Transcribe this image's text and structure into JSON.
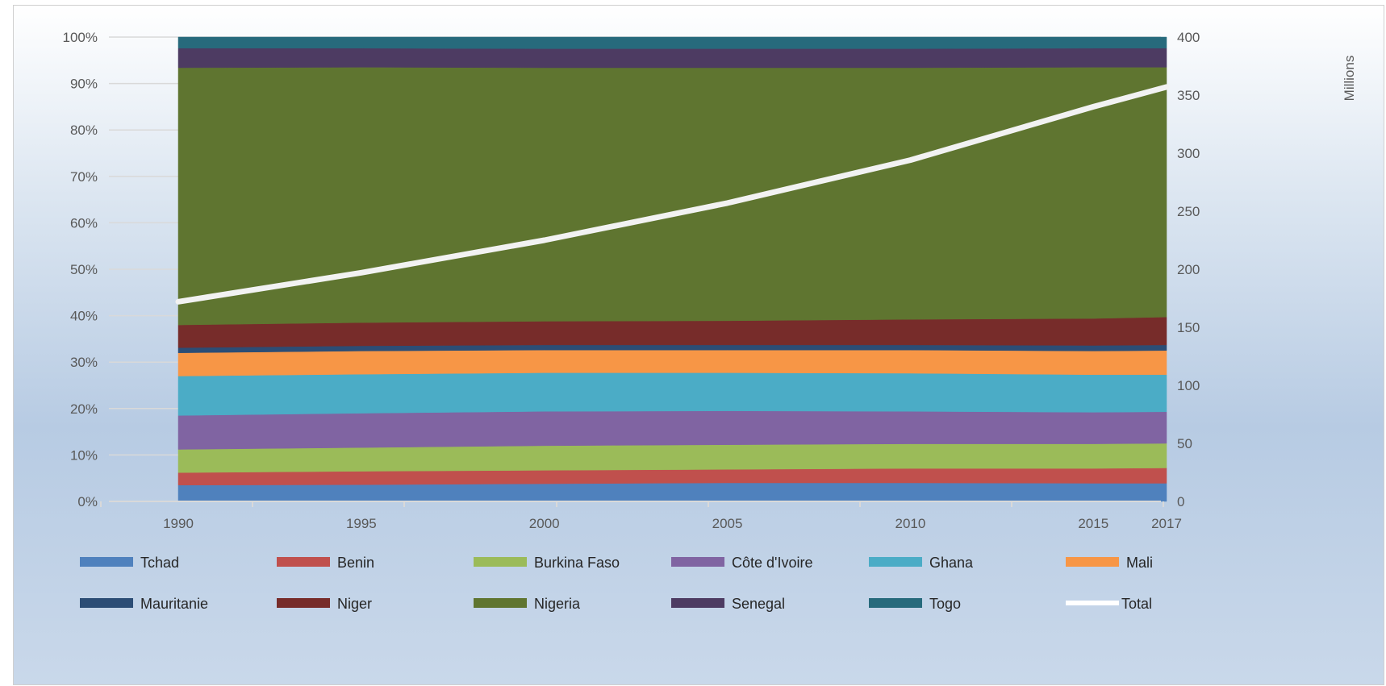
{
  "chart_data": {
    "type": "area",
    "stacked_percent": true,
    "title": "",
    "xlabel": "",
    "ylabel": "",
    "secondary_ylabel": "Millions",
    "x": [
      "1990",
      "1995",
      "2000",
      "2005",
      "2010",
      "2015",
      "2017"
    ],
    "ylim": [
      0,
      100
    ],
    "y_ticks": [
      "0%",
      "10%",
      "20%",
      "30%",
      "40%",
      "50%",
      "60%",
      "70%",
      "80%",
      "90%",
      "100%"
    ],
    "secondary_ylim": [
      0,
      400
    ],
    "secondary_y_ticks": [
      "0",
      "50",
      "100",
      "150",
      "200",
      "250",
      "300",
      "350",
      "400"
    ],
    "grid": true,
    "legend_position": "bottom",
    "series": [
      {
        "name": "Tchad",
        "color": "#4f81bd",
        "values": [
          3.5,
          3.6,
          3.8,
          4.0,
          4.0,
          3.9,
          3.9
        ]
      },
      {
        "name": "Benin",
        "color": "#c0504d",
        "values": [
          2.7,
          2.9,
          2.9,
          2.9,
          3.1,
          3.2,
          3.3
        ]
      },
      {
        "name": "Burkina Faso",
        "color": "#9bbb59",
        "values": [
          5.0,
          5.1,
          5.3,
          5.3,
          5.3,
          5.3,
          5.3
        ]
      },
      {
        "name": "Côte d'Ivoire",
        "color": "#8064a2",
        "values": [
          7.3,
          7.4,
          7.4,
          7.3,
          7.0,
          6.8,
          6.8
        ]
      },
      {
        "name": "Ghana",
        "color": "#4bacc6",
        "values": [
          8.5,
          8.4,
          8.3,
          8.2,
          8.2,
          8.1,
          8.0
        ]
      },
      {
        "name": "Mali",
        "color": "#f79646",
        "values": [
          5.0,
          5.0,
          4.9,
          4.9,
          5.0,
          5.1,
          5.2
        ]
      },
      {
        "name": "Mauritanie",
        "color": "#2c4d75",
        "values": [
          1.1,
          1.1,
          1.1,
          1.1,
          1.1,
          1.2,
          1.2
        ]
      },
      {
        "name": "Niger",
        "color": "#772c2a",
        "values": [
          4.9,
          5.0,
          5.1,
          5.2,
          5.5,
          5.8,
          6.0
        ]
      },
      {
        "name": "Nigeria",
        "color": "#5f7530",
        "values": [
          55.4,
          55.0,
          54.6,
          54.5,
          54.2,
          54.1,
          53.8
        ]
      },
      {
        "name": "Senegal",
        "color": "#4d3b62",
        "values": [
          4.2,
          4.1,
          4.1,
          4.1,
          4.1,
          4.1,
          4.1
        ]
      },
      {
        "name": "Togo",
        "color": "#276a7c",
        "values": [
          2.4,
          2.4,
          2.5,
          2.5,
          2.5,
          2.4,
          2.4
        ]
      }
    ],
    "line_series": {
      "name": "Total",
      "color": "#f2f2f2",
      "axis": "secondary",
      "values": [
        172,
        197,
        225,
        257,
        294,
        340,
        357
      ]
    }
  }
}
